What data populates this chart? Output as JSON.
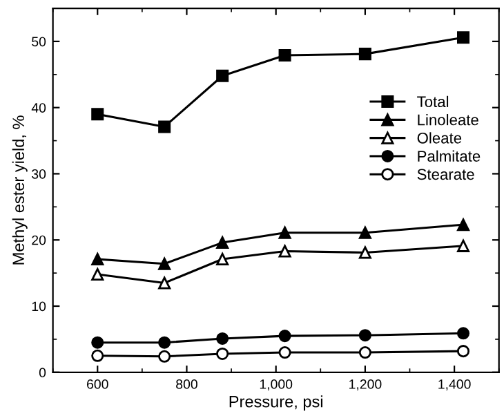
{
  "chart_data": {
    "type": "line",
    "xlabel": "Pressure, psi",
    "ylabel": "Methyl ester yield, %",
    "x": [
      600,
      750,
      880,
      1020,
      1200,
      1420
    ],
    "xlim": [
      500,
      1500
    ],
    "xticks": [
      600,
      800,
      {
        "value": 1000,
        "label": "1,000"
      },
      {
        "value": 1200,
        "label": "1,200"
      },
      {
        "value": 1400,
        "label": "1,400"
      }
    ],
    "ylim": [
      0,
      55
    ],
    "yticks": [
      0,
      10,
      20,
      30,
      40,
      50
    ],
    "grid": false,
    "legend": "right",
    "line_style": "solid",
    "series": [
      {
        "name": "Total",
        "color": "#000000",
        "marker": "square",
        "values": [
          39.0,
          37.1,
          44.8,
          47.9,
          48.1,
          50.6
        ]
      },
      {
        "name": "Linoleate",
        "color": "#000000",
        "marker": "triangle",
        "values": [
          17.1,
          16.4,
          19.6,
          21.1,
          21.1,
          22.3
        ]
      },
      {
        "name": "Oleate",
        "color": "#000000",
        "marker": "triangle_open",
        "values": [
          14.8,
          13.5,
          17.1,
          18.3,
          18.1,
          19.1
        ]
      },
      {
        "name": "Palmitate",
        "color": "#000000",
        "marker": "circle",
        "values": [
          4.5,
          4.5,
          5.1,
          5.5,
          5.6,
          5.9
        ]
      },
      {
        "name": "Stearate",
        "color": "#000000",
        "marker": "circle_open",
        "values": [
          2.5,
          2.4,
          2.8,
          3.0,
          3.0,
          3.2
        ]
      }
    ]
  }
}
